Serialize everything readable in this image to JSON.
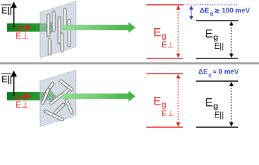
{
  "panels": [
    {
      "field_parallel": "E||",
      "field_perp": "E⊥",
      "gap_perp": {
        "symbol": "E",
        "sub": "g",
        "subsub": "E⊥"
      },
      "gap_parallel": {
        "symbol": "E",
        "sub": "g",
        "subsub": "E||"
      },
      "delta": {
        "prefix": "ΔE",
        "sub": "g",
        "relation": "≳ 100 meV"
      }
    },
    {
      "field_parallel": "E||",
      "field_perp": "E⊥",
      "gap_perp": {
        "symbol": "E",
        "sub": "g",
        "subsub": "E⊥"
      },
      "gap_parallel": {
        "symbol": "E",
        "sub": "g",
        "subsub": "E||"
      },
      "delta": {
        "prefix": "ΔE",
        "sub": "g",
        "relation": "≈ 0 meV"
      }
    }
  ]
}
